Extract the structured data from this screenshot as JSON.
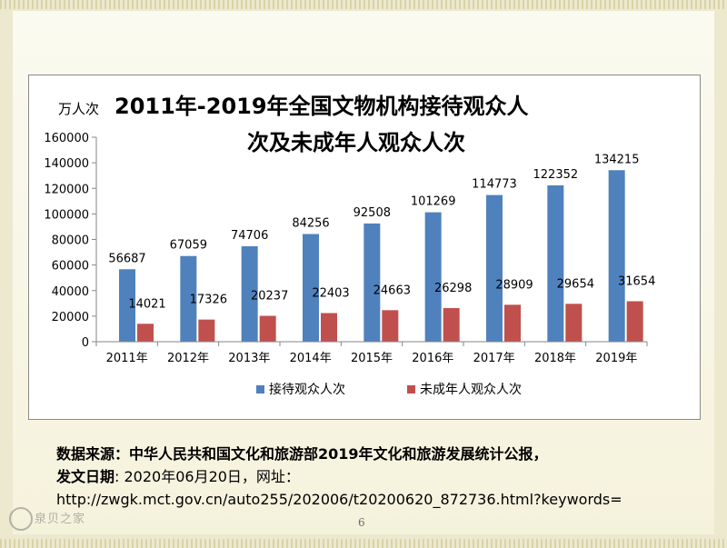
{
  "chart_data": {
    "type": "bar",
    "title_line1": "2011年-2019年全国文物机构接待观众人",
    "title_line2": "次及未成年人观众人次",
    "ylabel": "万人次",
    "categories": [
      "2011年",
      "2012年",
      "2013年",
      "2014年",
      "2015年",
      "2016年",
      "2017年",
      "2018年",
      "2019年"
    ],
    "series": [
      {
        "name": "接待观众人次",
        "color": "#4f81bd",
        "values": [
          56687,
          67059,
          74706,
          84256,
          92508,
          101269,
          114773,
          122352,
          134215
        ]
      },
      {
        "name": "未成年人观众人次",
        "color": "#c0504d",
        "values": [
          14021,
          17326,
          20237,
          22403,
          24663,
          26298,
          28909,
          29654,
          31654
        ]
      }
    ],
    "ylim": [
      0,
      160000
    ],
    "yticks": [
      "0",
      "20000",
      "40000",
      "60000",
      "80000",
      "100000",
      "120000",
      "140000",
      "160000"
    ],
    "legend_position": "bottom",
    "grid": false
  },
  "source": {
    "line1": "数据来源：中华人民共和国文化和旅游部2019年文化和旅游发展统计公报，",
    "line2_label": "发文日期",
    "line2_value": ": 2020年06月20日，网址：",
    "line3": "http://zwgk.mct.gov.cn/auto255/202006/t20200620_872736.html?keywords="
  },
  "page_number": "6",
  "watermark": "泉贝之家"
}
